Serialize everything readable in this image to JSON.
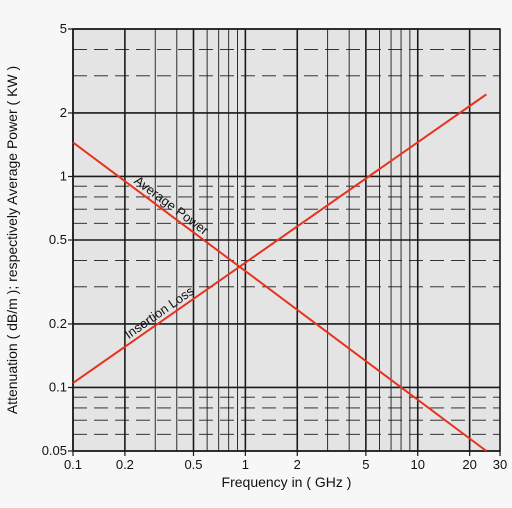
{
  "chart_data": {
    "type": "line",
    "xlabel": "Frequency in ( GHz )",
    "ylabel": "Attenuation ( dB/m ); respectively Average Power ( KW )",
    "x_scale": "log",
    "y_scale": "log",
    "xlim": [
      0.1,
      30
    ],
    "ylim": [
      0.05,
      5
    ],
    "x_ticks": [
      {
        "value": 0.1,
        "label": "0.1"
      },
      {
        "value": 0.2,
        "label": "0.2"
      },
      {
        "value": 0.5,
        "label": "0.5"
      },
      {
        "value": 1,
        "label": "1"
      },
      {
        "value": 2,
        "label": "2"
      },
      {
        "value": 5,
        "label": "5"
      },
      {
        "value": 10,
        "label": "10"
      },
      {
        "value": 20,
        "label": "20"
      },
      {
        "value": 30,
        "label": "30"
      }
    ],
    "y_ticks": [
      {
        "value": 0.05,
        "label": "0.05"
      },
      {
        "value": 0.1,
        "label": "0.1"
      },
      {
        "value": 0.2,
        "label": "0.2"
      },
      {
        "value": 0.5,
        "label": "0.5"
      },
      {
        "value": 1,
        "label": "1"
      },
      {
        "value": 2,
        "label": "2"
      },
      {
        "value": 5,
        "label": "5"
      }
    ],
    "grid": true,
    "series": [
      {
        "name": "Average Power",
        "color": "#e8321e",
        "x": [
          0.1,
          25
        ],
        "y": [
          1.45,
          0.05
        ]
      },
      {
        "name": "Insertion Loss",
        "color": "#e8321e",
        "x": [
          0.1,
          25
        ],
        "y": [
          0.105,
          2.45
        ]
      }
    ]
  }
}
